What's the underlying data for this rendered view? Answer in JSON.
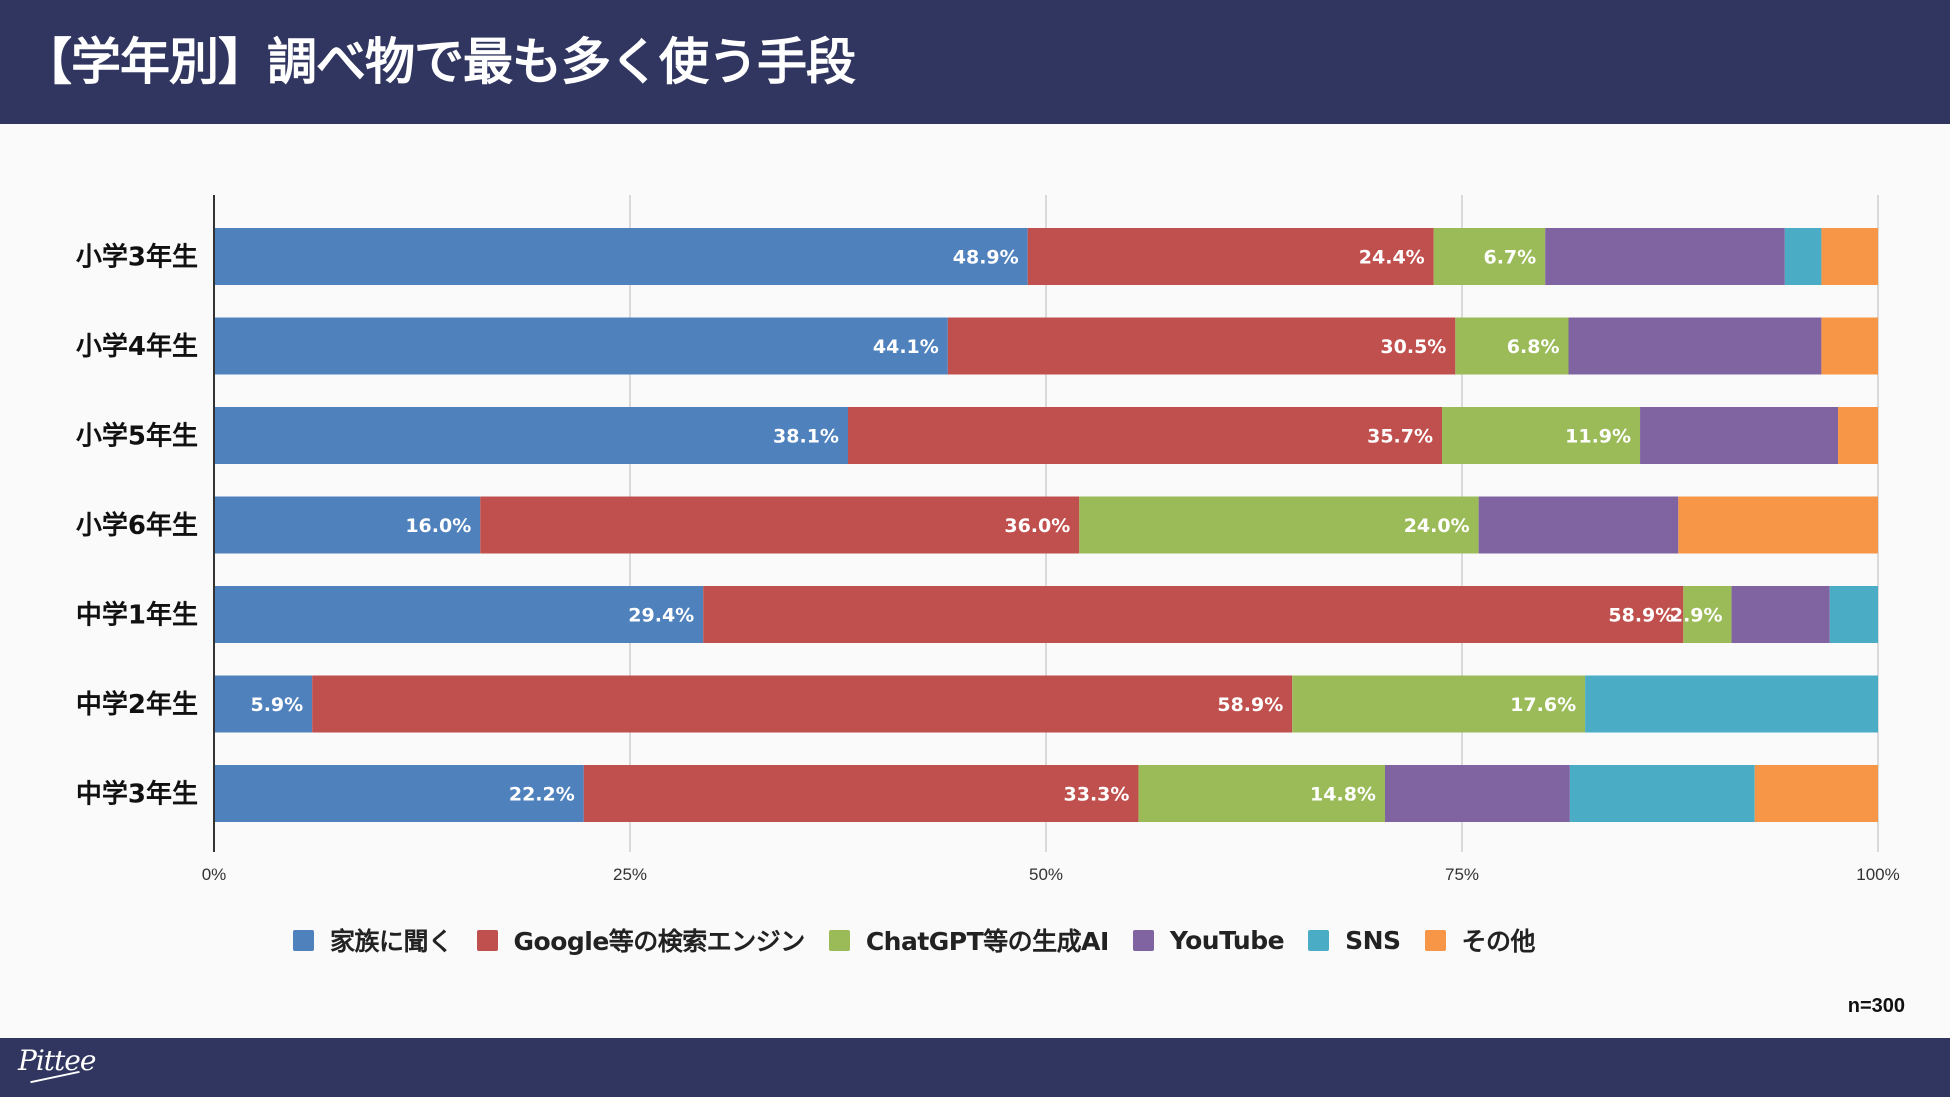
{
  "header": {
    "title": "【学年別】調べ物で最も多く使う手段"
  },
  "footer": {
    "logo_text": "Pittee"
  },
  "sample_size": "n=300",
  "chart_data": {
    "type": "bar",
    "orientation": "horizontal",
    "stacked": "percent",
    "title": "【学年別】調べ物で最も多く使う手段",
    "xlabel": "",
    "ylabel": "",
    "xlim": [
      0,
      100
    ],
    "grid": true,
    "legend_position": "bottom",
    "x_ticks": [
      "0%",
      "25%",
      "50%",
      "75%",
      "100%"
    ],
    "x_tick_values": [
      0,
      25,
      50,
      75,
      100
    ],
    "categories": [
      "小学3年生",
      "小学4年生",
      "小学5年生",
      "小学6年生",
      "中学1年生",
      "中学2年生",
      "中学3年生"
    ],
    "series": [
      {
        "name": "家族に聞く",
        "color": "#4f81bd",
        "values": [
          48.9,
          44.1,
          38.1,
          16.0,
          29.4,
          5.9,
          22.2
        ],
        "labeled": [
          true,
          true,
          true,
          true,
          true,
          true,
          true
        ]
      },
      {
        "name": "Google等の検索エンジン",
        "color": "#c0504d",
        "values": [
          24.4,
          30.5,
          35.7,
          36.0,
          58.9,
          58.9,
          33.3
        ],
        "labeled": [
          true,
          true,
          true,
          true,
          true,
          true,
          true
        ]
      },
      {
        "name": "ChatGPT等の生成AI",
        "color": "#9bbb59",
        "values": [
          6.7,
          6.8,
          11.9,
          24.0,
          2.9,
          17.6,
          14.8
        ],
        "labeled": [
          true,
          true,
          true,
          true,
          true,
          true,
          true
        ]
      },
      {
        "name": "YouTube",
        "color": "#8064a2",
        "values": [
          14.4,
          15.2,
          11.9,
          12.0,
          5.9,
          0.0,
          11.1
        ],
        "labeled": [
          false,
          false,
          false,
          false,
          false,
          false,
          false
        ]
      },
      {
        "name": "SNS",
        "color": "#4bacc6",
        "values": [
          2.2,
          0.0,
          0.0,
          0.0,
          2.9,
          17.6,
          11.1
        ],
        "labeled": [
          false,
          false,
          false,
          false,
          false,
          false,
          false
        ]
      },
      {
        "name": "その他",
        "color": "#f79646",
        "values": [
          3.4,
          3.4,
          2.4,
          12.0,
          0.0,
          0.0,
          7.4
        ],
        "labeled": [
          false,
          false,
          false,
          false,
          false,
          false,
          false
        ]
      }
    ]
  }
}
